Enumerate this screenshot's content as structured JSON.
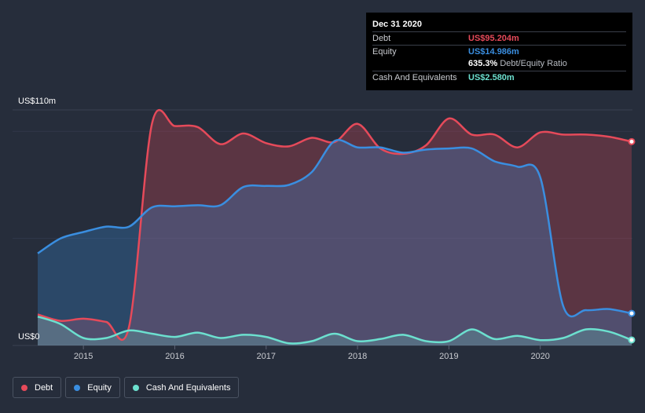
{
  "tooltip": {
    "date": "Dec 31 2020",
    "debt_label": "Debt",
    "debt_value": "US$95.204m",
    "equity_label": "Equity",
    "equity_value": "US$14.986m",
    "ratio_value": "635.3%",
    "ratio_label": "Debt/Equity Ratio",
    "cash_label": "Cash And Equivalents",
    "cash_value": "US$2.580m"
  },
  "legend": [
    {
      "label": "Debt",
      "color": "#e64a5a"
    },
    {
      "label": "Equity",
      "color": "#3a8ee0"
    },
    {
      "label": "Cash And Equivalents",
      "color": "#6ce0cf"
    }
  ],
  "colors": {
    "debt": "#e64a5a",
    "equity": "#3a8ee0",
    "cash": "#6ce0cf",
    "background": "#262d3b",
    "grid": "#3a4150"
  },
  "chart_data": {
    "type": "area",
    "title": "",
    "xlabel": "",
    "ylabel": "",
    "y_top_label": "US$110m",
    "y_bottom_label": "US$0",
    "ylim": [
      0,
      110
    ],
    "xlim": [
      2014.5,
      2021.0
    ],
    "x_ticks": [
      2015,
      2016,
      2017,
      2018,
      2019,
      2020
    ],
    "x_tick_labels": [
      "2015",
      "2016",
      "2017",
      "2018",
      "2019",
      "2020"
    ],
    "series": [
      {
        "name": "Debt",
        "points": [
          [
            2014.5,
            14.5
          ],
          [
            2014.75,
            11.5
          ],
          [
            2015.0,
            12.5
          ],
          [
            2015.25,
            11.0
          ],
          [
            2015.5,
            8.8
          ],
          [
            2015.75,
            103.5
          ],
          [
            2016.0,
            102.5
          ],
          [
            2016.25,
            102.0
          ],
          [
            2016.5,
            94.0
          ],
          [
            2016.75,
            99.0
          ],
          [
            2017.0,
            94.5
          ],
          [
            2017.25,
            93.0
          ],
          [
            2017.5,
            97.0
          ],
          [
            2017.75,
            95.0
          ],
          [
            2018.0,
            103.5
          ],
          [
            2018.25,
            92.0
          ],
          [
            2018.5,
            89.5
          ],
          [
            2018.75,
            93.5
          ],
          [
            2019.0,
            106.0
          ],
          [
            2019.25,
            98.5
          ],
          [
            2019.5,
            98.5
          ],
          [
            2019.75,
            92.5
          ],
          [
            2020.0,
            99.5
          ],
          [
            2020.25,
            98.5
          ],
          [
            2020.5,
            98.5
          ],
          [
            2020.75,
            97.5
          ],
          [
            2021.0,
            95.2
          ]
        ]
      },
      {
        "name": "Equity",
        "points": [
          [
            2014.5,
            43.0
          ],
          [
            2014.75,
            50.0
          ],
          [
            2015.0,
            53.0
          ],
          [
            2015.25,
            55.5
          ],
          [
            2015.5,
            55.5
          ],
          [
            2015.75,
            64.5
          ],
          [
            2016.0,
            65.0
          ],
          [
            2016.25,
            65.5
          ],
          [
            2016.5,
            65.5
          ],
          [
            2016.75,
            74.0
          ],
          [
            2017.0,
            74.5
          ],
          [
            2017.25,
            75.0
          ],
          [
            2017.5,
            81.0
          ],
          [
            2017.75,
            95.5
          ],
          [
            2018.0,
            92.5
          ],
          [
            2018.25,
            92.5
          ],
          [
            2018.5,
            90.0
          ],
          [
            2018.75,
            91.5
          ],
          [
            2019.0,
            92.0
          ],
          [
            2019.25,
            92.0
          ],
          [
            2019.5,
            86.0
          ],
          [
            2019.75,
            83.5
          ],
          [
            2020.0,
            78.5
          ],
          [
            2020.25,
            18.5
          ],
          [
            2020.5,
            16.5
          ],
          [
            2020.75,
            17.0
          ],
          [
            2021.0,
            15.0
          ]
        ]
      },
      {
        "name": "Cash And Equivalents",
        "points": [
          [
            2014.5,
            13.5
          ],
          [
            2014.75,
            10.0
          ],
          [
            2015.0,
            3.5
          ],
          [
            2015.25,
            3.5
          ],
          [
            2015.5,
            7.0
          ],
          [
            2015.75,
            5.5
          ],
          [
            2016.0,
            4.0
          ],
          [
            2016.25,
            6.0
          ],
          [
            2016.5,
            3.5
          ],
          [
            2016.75,
            5.0
          ],
          [
            2017.0,
            4.0
          ],
          [
            2017.25,
            1.0
          ],
          [
            2017.5,
            2.0
          ],
          [
            2017.75,
            5.5
          ],
          [
            2018.0,
            2.0
          ],
          [
            2018.25,
            3.0
          ],
          [
            2018.5,
            5.0
          ],
          [
            2018.75,
            2.0
          ],
          [
            2019.0,
            2.0
          ],
          [
            2019.25,
            7.5
          ],
          [
            2019.5,
            3.0
          ],
          [
            2019.75,
            4.5
          ],
          [
            2020.0,
            2.5
          ],
          [
            2020.25,
            3.5
          ],
          [
            2020.5,
            7.5
          ],
          [
            2020.75,
            6.5
          ],
          [
            2021.0,
            2.58
          ]
        ]
      }
    ]
  }
}
